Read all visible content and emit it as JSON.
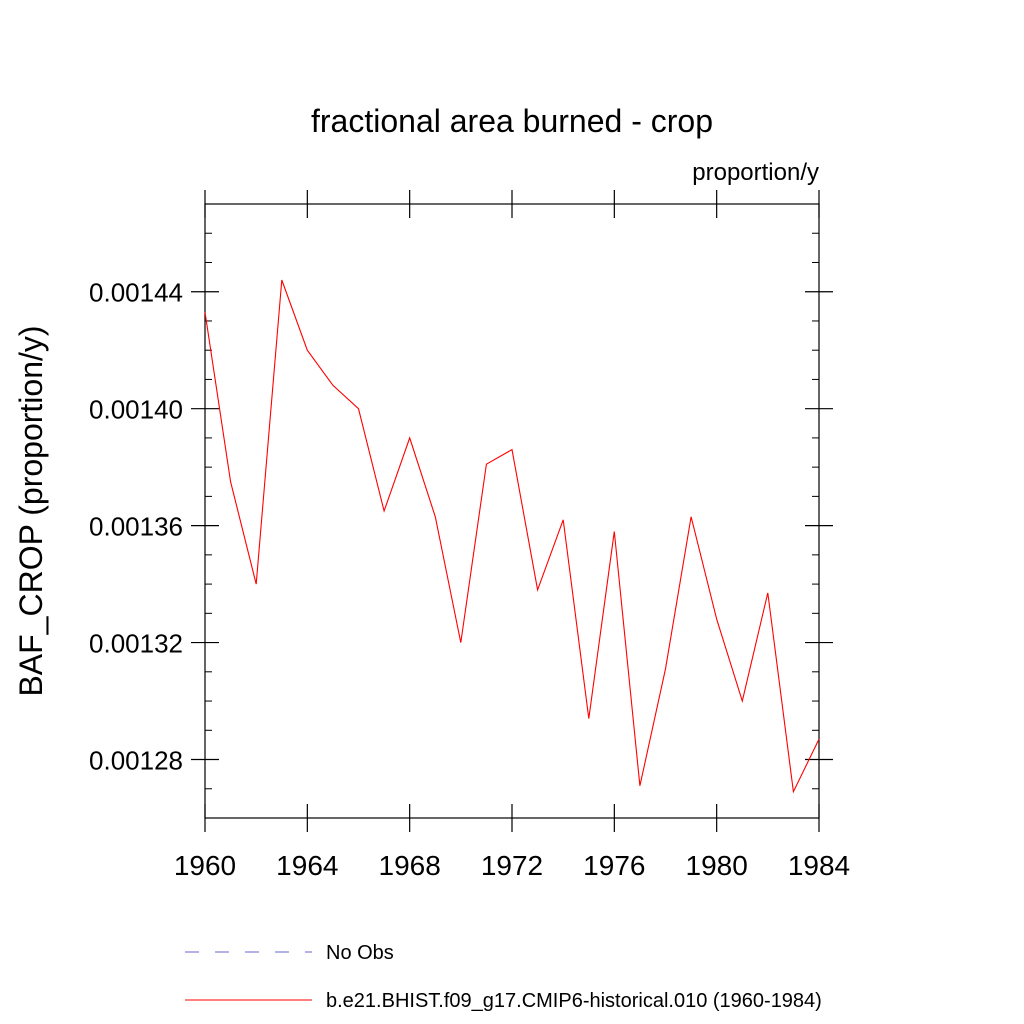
{
  "chart_data": {
    "type": "line",
    "title": "fractional area burned - crop",
    "units": "proportion/y",
    "ylabel": "BAF_CROP  (proportion/y)",
    "xlabel": "",
    "xlim": [
      1960,
      1984
    ],
    "ylim": [
      0.00126,
      0.00147
    ],
    "x_ticks": [
      1960,
      1964,
      1968,
      1972,
      1976,
      1980,
      1984
    ],
    "x_tick_labels": [
      "1960",
      "1964",
      "1968",
      "1972",
      "1976",
      "1980",
      "1984"
    ],
    "y_ticks": [
      0.00128,
      0.00132,
      0.00136,
      0.0014,
      0.00144
    ],
    "y_tick_labels": [
      "0.00128",
      "0.00132",
      "0.00136",
      "0.00140",
      "0.00144"
    ],
    "grid": false,
    "legend_position": "bottom",
    "series": [
      {
        "name": "b.e21.BHIST.f09_g17.CMIP6-historical.010 (1960-1984)",
        "color": "#ff0000",
        "style": "solid",
        "x": [
          1960,
          1961,
          1962,
          1963,
          1964,
          1965,
          1966,
          1967,
          1968,
          1969,
          1970,
          1971,
          1972,
          1973,
          1974,
          1975,
          1976,
          1977,
          1978,
          1979,
          1980,
          1981,
          1982,
          1983,
          1984
        ],
        "y": [
          0.001433,
          0.001375,
          0.00134,
          0.001444,
          0.00142,
          0.001408,
          0.0014,
          0.001365,
          0.00139,
          0.001363,
          0.00132,
          0.001381,
          0.001386,
          0.001338,
          0.001362,
          0.001294,
          0.001358,
          0.001271,
          0.001311,
          0.001363,
          0.001328,
          0.0013,
          0.001337,
          0.001269,
          0.001287
        ]
      }
    ],
    "legend": [
      {
        "label": "No Obs",
        "color": "#6666cc",
        "style": "dashed"
      },
      {
        "label": "b.e21.BHIST.f09_g17.CMIP6-historical.010 (1960-1984)",
        "color": "#ff0000",
        "style": "solid"
      }
    ]
  }
}
